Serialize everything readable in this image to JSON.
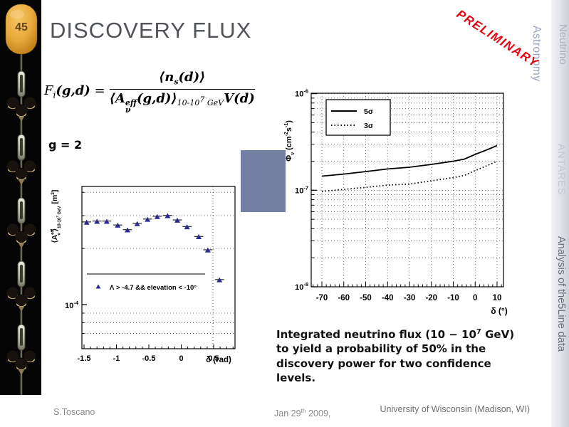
{
  "slide": {
    "number": "45",
    "title": "DISCOVERY FLUX",
    "preliminary": "PRELIMINARY",
    "g_label": "g = 2"
  },
  "sidebar": {
    "neutrino": "Neutrino",
    "astronomy": "Astronomy",
    "antares": "ANTARES",
    "analysis": "Analysis of the5Line data"
  },
  "formula": {
    "lhs": "F",
    "lhs_sub": "i",
    "lhs_args": "(g,d)",
    "equals": "=",
    "num_pre": "⟨n",
    "num_sub": "s",
    "num_post": "(d)⟩",
    "den_pre": "⟨A",
    "den_sup": "eff",
    "den_sub": "ν",
    "den_args": "(g,d)⟩",
    "den_range_pre": "10-10",
    "den_range_sup": "7",
    "den_range_unit": " GeV",
    "den_tail": "V(d)"
  },
  "caption": {
    "pre": "Integrated neutrino flux (10 − 10",
    "sup": "7",
    "post": " GeV) to yield a probability of 50% in the discovery power for two confidence levels."
  },
  "footer": {
    "author": "S.Toscano",
    "date_pre": "Jan 29",
    "date_sup": "th",
    "date_post": " 2009,",
    "affiliation": "University of Wisconsin  (Madison, WI)"
  },
  "colors": {
    "preliminary_red": "#e30613",
    "blue_box": "#7380a3",
    "marker_blue": "#2b2b8f",
    "buoy_orange": "#e8a93c",
    "strip_black": "#050505"
  },
  "chart_data": [
    {
      "type": "scatter",
      "title": "",
      "xlabel": "δ (rad)",
      "ylabel_segments": [
        {
          "t": "⟨A",
          "dy": 0,
          "s": 10.5
        },
        {
          "t": "eff",
          "dy": -4.5,
          "s": 6.5
        },
        {
          "t": "ν",
          "dy": 9,
          "dx": -9,
          "s": 6.5
        },
        {
          "t": "⟩",
          "dy": -4.5,
          "dx": 2,
          "s": 10.5
        },
        {
          "t": "10-10",
          "dy": 5,
          "s": 6
        },
        {
          "t": "7",
          "dy": -3,
          "s": 4.5
        },
        {
          "t": " GeV",
          "dy": 3,
          "s": 6
        },
        {
          "t": " [m",
          "dy": -5,
          "s": 10.5
        },
        {
          "t": "2",
          "dy": -4,
          "s": 6.5
        },
        {
          "t": "]",
          "dy": 4,
          "s": 10.5
        }
      ],
      "xlim": [
        -1.53,
        0.83
      ],
      "ylim": [
        6e-05,
        0.00042
      ],
      "x_ticks": [
        {
          "v": -1.5,
          "l": "-1.5"
        },
        {
          "v": -1,
          "l": "-1"
        },
        {
          "v": -0.5,
          "l": "-0.5"
        },
        {
          "v": 0,
          "l": "0"
        },
        {
          "v": 0.5,
          "l": "0.5"
        }
      ],
      "y_tick": {
        "mant": "10",
        "exp": "-4",
        "value": 0.0001
      },
      "grid_y_values": [
        0.0004,
        0.0003,
        0.0002,
        9e-05,
        8e-05,
        7e-05
      ],
      "vline_x": 0.49,
      "legend": {
        "marker": "triangle",
        "label": "Λ > -4.7 && elevation < -10°"
      },
      "xerr": 0.07,
      "points": [
        [
          -1.46,
          0.000275
        ],
        [
          -1.3,
          0.000278
        ],
        [
          -1.15,
          0.000278
        ],
        [
          -0.98,
          0.000265
        ],
        [
          -0.83,
          0.00025
        ],
        [
          -0.68,
          0.00027
        ],
        [
          -0.52,
          0.000285
        ],
        [
          -0.37,
          0.000295
        ],
        [
          -0.21,
          0.000298
        ],
        [
          -0.06,
          0.000282
        ],
        [
          0.09,
          0.00026
        ],
        [
          0.27,
          0.00023
        ],
        [
          0.41,
          0.000195
        ],
        [
          0.59,
          0.000135
        ]
      ]
    },
    {
      "type": "line",
      "title": "",
      "xlabel": "δ (°)",
      "ylabel_segments": [
        {
          "t": "Φ",
          "dy": 0,
          "s": 11
        },
        {
          "t": "ν",
          "dy": 4,
          "s": 7
        },
        {
          "t": " (cm",
          "dy": -4,
          "s": 11
        },
        {
          "t": "-2",
          "dy": -5,
          "s": 7
        },
        {
          "t": "s",
          "dy": 5,
          "s": 11
        },
        {
          "t": "-1",
          "dy": -5,
          "s": 7
        },
        {
          "t": ")",
          "dy": 5,
          "s": 11
        }
      ],
      "xlim": [
        -74.9,
        12.9
      ],
      "ylim": [
        1e-08,
        1.02e-06
      ],
      "x_ticks": [
        -70,
        -60,
        -50,
        -40,
        -30,
        -20,
        -10,
        0,
        10
      ],
      "y_ticks": [
        {
          "mant": "10",
          "exp": "-6",
          "value": 1e-06
        },
        {
          "mant": "10",
          "exp": "-7",
          "value": 1e-07
        },
        {
          "mant": "10",
          "exp": "-8",
          "value": 1e-08
        }
      ],
      "legend_position": "top-left",
      "series": [
        {
          "name": "5σ",
          "style": "solid",
          "points": [
            [
              -70,
              1.4e-07
            ],
            [
              -60,
              1.47e-07
            ],
            [
              -50,
              1.56e-07
            ],
            [
              -40,
              1.66e-07
            ],
            [
              -30,
              1.73e-07
            ],
            [
              -20,
              1.85e-07
            ],
            [
              -10,
              2e-07
            ],
            [
              -5,
              2.1e-07
            ],
            [
              0,
              2.35e-07
            ],
            [
              5,
              2.6e-07
            ],
            [
              10,
              2.9e-07
            ]
          ]
        },
        {
          "name": "3σ",
          "style": "dotted",
          "points": [
            [
              -70,
              9.7e-08
            ],
            [
              -60,
              1.02e-07
            ],
            [
              -50,
              1.07e-07
            ],
            [
              -40,
              1.13e-07
            ],
            [
              -30,
              1.16e-07
            ],
            [
              -20,
              1.25e-07
            ],
            [
              -10,
              1.35e-07
            ],
            [
              -5,
              1.42e-07
            ],
            [
              0,
              1.6e-07
            ],
            [
              5,
              1.78e-07
            ],
            [
              10,
              2e-07
            ]
          ]
        }
      ]
    }
  ]
}
